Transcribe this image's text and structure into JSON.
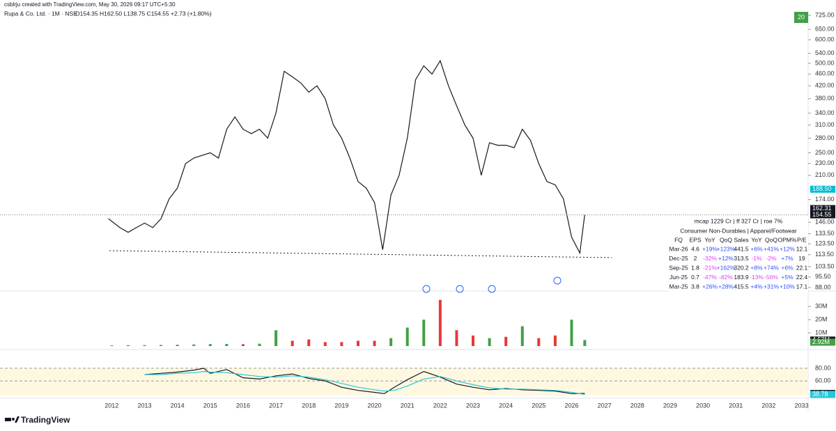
{
  "header": {
    "author_line": "csblrju created with TradingView.com, May 30, 2026 09:17 UTC+5:30",
    "symbol_line": "Rupa & Co. Ltd. · 1M · NSE",
    "ohlc": "O154.35 H162.50 L138.75 C154.55 +2.73 (+1.80%)",
    "badge": "20"
  },
  "chart_data": [
    {
      "type": "line",
      "log_scale": true,
      "color": "#131722",
      "x": [
        2011.9,
        2012.25,
        2012.5,
        2012.75,
        2013,
        2013.25,
        2013.5,
        2013.75,
        2014,
        2014.25,
        2014.5,
        2014.75,
        2015,
        2015.25,
        2015.5,
        2015.75,
        2016,
        2016.25,
        2016.5,
        2016.75,
        2017,
        2017.25,
        2017.5,
        2017.75,
        2018,
        2018.25,
        2018.5,
        2018.75,
        2019,
        2019.25,
        2019.5,
        2019.75,
        2020,
        2020.25,
        2020.5,
        2020.75,
        2021,
        2021.25,
        2021.5,
        2021.75,
        2022,
        2022.25,
        2022.5,
        2022.75,
        2023,
        2023.25,
        2023.5,
        2023.75,
        2024,
        2024.25,
        2024.5,
        2024.75,
        2025,
        2025.25,
        2025.5,
        2025.75,
        2026,
        2026.25,
        2026.4
      ],
      "values": [
        150,
        140,
        135,
        140,
        145,
        140,
        150,
        175,
        190,
        230,
        240,
        245,
        250,
        240,
        300,
        330,
        300,
        290,
        300,
        280,
        340,
        470,
        450,
        430,
        400,
        420,
        380,
        310,
        280,
        240,
        200,
        190,
        170,
        118,
        180,
        210,
        280,
        440,
        490,
        460,
        510,
        420,
        360,
        310,
        280,
        210,
        270,
        265,
        265,
        260,
        300,
        275,
        230,
        200,
        195,
        175,
        130,
        115,
        154.55
      ],
      "xlim": [
        2008.6,
        2033.2
      ],
      "xticks": [
        2012,
        2013,
        2014,
        2015,
        2016,
        2017,
        2018,
        2019,
        2020,
        2021,
        2022,
        2023,
        2024,
        2025,
        2026,
        2027,
        2028,
        2029,
        2030,
        2031,
        2032,
        2033
      ],
      "ylim": [
        88,
        725
      ],
      "yticks": [
        {
          "value": 725,
          "label": "725.00"
        },
        {
          "value": 650,
          "label": "650.00"
        },
        {
          "value": 600,
          "label": "600.00"
        },
        {
          "value": 540,
          "label": "540.00"
        },
        {
          "value": 500,
          "label": "500.00"
        },
        {
          "value": 460,
          "label": "460.00"
        },
        {
          "value": 420,
          "label": "420.00"
        },
        {
          "value": 380,
          "label": "380.00"
        },
        {
          "value": 340,
          "label": "340.00"
        },
        {
          "value": 310,
          "label": "310.00"
        },
        {
          "value": 280,
          "label": "280.00"
        },
        {
          "value": 250,
          "label": "250.00"
        },
        {
          "value": 230,
          "label": "230.00"
        },
        {
          "value": 210,
          "label": "210.00"
        },
        {
          "value": 174,
          "label": "174.00"
        },
        {
          "value": 146,
          "label": "146.00"
        },
        {
          "value": 133.5,
          "label": "133.50"
        },
        {
          "value": 123.5,
          "label": "123.50"
        },
        {
          "value": 113.5,
          "label": "113.50"
        },
        {
          "value": 103.5,
          "label": "103.50"
        },
        {
          "value": 95.5,
          "label": "95.50"
        },
        {
          "value": 88,
          "label": "88.00"
        }
      ],
      "tags": [
        {
          "value": 188.5,
          "label": "188.50",
          "color": "#00bcd4"
        },
        {
          "value": 162.31,
          "label": "162.31",
          "color": "#131722"
        },
        {
          "value": 154.55,
          "label": "154.55",
          "color": "#131722"
        }
      ]
    },
    {
      "type": "bar",
      "x": [
        2012,
        2012.5,
        2013,
        2013.5,
        2014,
        2014.5,
        2015,
        2015.5,
        2016,
        2016.5,
        2017,
        2017.5,
        2018,
        2018.5,
        2019,
        2019.5,
        2020,
        2020.5,
        2021,
        2021.5,
        2022,
        2022.5,
        2023,
        2023.5,
        2024,
        2024.5,
        2025,
        2025.5,
        2026,
        2026.4
      ],
      "values": [
        0.5,
        0.6,
        0.7,
        0.8,
        1,
        1.2,
        1.5,
        1.6,
        1.4,
        1.8,
        12,
        4,
        5,
        3,
        3,
        4,
        4,
        6,
        14,
        20,
        35,
        12,
        8,
        6,
        7,
        15,
        6,
        8,
        20,
        4.57
      ],
      "colors": [
        "#43a047",
        "#e53935",
        "#43a047",
        "#43a047",
        "#43a047",
        "#43a047",
        "#43a047",
        "#43a047",
        "#e53935",
        "#43a047",
        "#43a047",
        "#e53935",
        "#e53935",
        "#e53935",
        "#e53935",
        "#e53935",
        "#e53935",
        "#43a047",
        "#43a047",
        "#43a047",
        "#e53935",
        "#e53935",
        "#e53935",
        "#43a047",
        "#e53935",
        "#43a047",
        "#e53935",
        "#e53935",
        "#43a047",
        "#43a047"
      ],
      "ylim": [
        0,
        38
      ],
      "yticks": [
        {
          "value": 10,
          "label": "10M"
        },
        {
          "value": 20,
          "label": "20M"
        },
        {
          "value": 30,
          "label": "30M"
        }
      ],
      "tags": [
        {
          "value": 4.57,
          "label": "4.57M",
          "color": "#131722"
        },
        {
          "value": 2.92,
          "label": "2.92M",
          "color": "#43a047"
        }
      ]
    },
    {
      "type": "line",
      "x": [
        2013,
        2013.5,
        2014,
        2014.5,
        2014.8,
        2015,
        2015.5,
        2016,
        2016.5,
        2017,
        2017.5,
        2018,
        2018.5,
        2019,
        2019.5,
        2020,
        2020.3,
        2020.6,
        2021,
        2021.5,
        2022,
        2022.5,
        2023,
        2023.5,
        2024,
        2024.5,
        2025,
        2025.5,
        2026,
        2026.4
      ],
      "series": [
        {
          "color": "#131722",
          "values": [
            70,
            72,
            74,
            77,
            80,
            72,
            78,
            65,
            63,
            68,
            71,
            64,
            60,
            50,
            45,
            42,
            40,
            50,
            62,
            75,
            66,
            55,
            50,
            46,
            48,
            46,
            45,
            44,
            40,
            40.31
          ]
        },
        {
          "color": "#26c6da",
          "values": [
            70,
            70,
            72,
            73,
            75,
            74,
            73,
            70,
            67,
            66,
            68,
            66,
            62,
            56,
            50,
            46,
            44,
            45,
            52,
            63,
            67,
            60,
            54,
            49,
            47,
            47,
            46,
            45,
            42,
            38.78
          ]
        }
      ],
      "ylim": [
        37,
        92
      ],
      "yticks": [
        {
          "value": 80,
          "label": "80.00"
        },
        {
          "value": 60,
          "label": "60.00"
        }
      ],
      "tags": [
        {
          "value": 40.31,
          "label": "40.31",
          "color": "#131722"
        },
        {
          "value": 38.78,
          "label": "38.78",
          "color": "#26c6da"
        }
      ]
    }
  ],
  "fundamentals": {
    "summary": "mcap 1229 Cr  |  ff 327 Cr  |  roe 7%",
    "sector": "Consumer Non-Durables  |  Apparel/Footwear",
    "columns": [
      "FQ",
      "EPS",
      "YoY",
      "QoQ",
      "Sales",
      "YoY",
      "QoQ",
      "OPM%",
      "P/E"
    ],
    "rows": [
      [
        "Mar-26",
        "4.6",
        "+19%",
        "+123%",
        "441.5",
        "+6%",
        "+41%",
        "+12%",
        "12.1"
      ],
      [
        "Dec-25",
        "2",
        "-32%",
        "+12%",
        "313.5",
        "-1%",
        "-2%",
        "+7%",
        "19"
      ],
      [
        "Sep-25",
        "1.8",
        "-21%",
        "+162%",
        "320.2",
        "+8%",
        "+74%",
        "+6%",
        "22.1"
      ],
      [
        "Jun-25",
        "0.7",
        "-47%",
        "-82%",
        "183.9",
        "-13%",
        "-56%",
        "+5%",
        "22.4"
      ],
      [
        "Mar-25",
        "3.8",
        "+26%",
        "+28%",
        "415.5",
        "+4%",
        "+31%",
        "+10%",
        "17.1"
      ]
    ]
  },
  "footer": {
    "brand": "TradingView"
  }
}
